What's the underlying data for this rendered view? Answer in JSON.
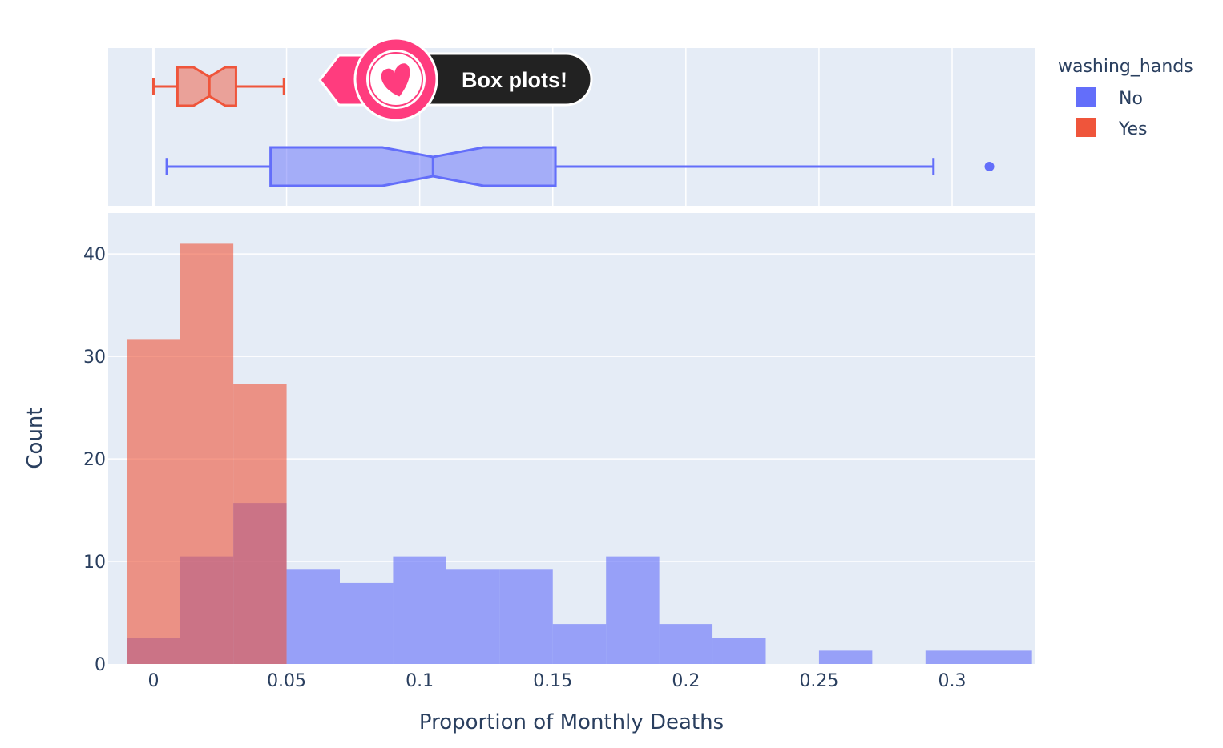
{
  "chart_data": {
    "type": "histogram_with_marginal_box",
    "xlabel": "Proportion of Monthly Deaths",
    "ylabel": "Count",
    "xlim": [
      -0.017,
      0.331
    ],
    "ylim": [
      0,
      44
    ],
    "x_ticks": [
      {
        "value": 0,
        "label": "0"
      },
      {
        "value": 0.05,
        "label": "0.05"
      },
      {
        "value": 0.1,
        "label": "0.1"
      },
      {
        "value": 0.15,
        "label": "0.15"
      },
      {
        "value": 0.2,
        "label": "0.2"
      },
      {
        "value": 0.25,
        "label": "0.25"
      },
      {
        "value": 0.3,
        "label": "0.3"
      }
    ],
    "y_ticks": [
      {
        "value": 0,
        "label": "0"
      },
      {
        "value": 10,
        "label": "10"
      },
      {
        "value": 20,
        "label": "20"
      },
      {
        "value": 30,
        "label": "30"
      },
      {
        "value": 40,
        "label": "40"
      }
    ],
    "grid": true,
    "legend": {
      "title": "washing_hands",
      "placement": "top-right",
      "items": [
        {
          "name": "No",
          "color": "#636efa"
        },
        {
          "name": "Yes",
          "color": "#ef553b"
        }
      ]
    },
    "series": [
      {
        "name": "No",
        "color": "#636efa",
        "bins": [
          {
            "x0": -0.01,
            "x1": 0.01,
            "count": 2.5
          },
          {
            "x0": 0.01,
            "x1": 0.03,
            "count": 10.5
          },
          {
            "x0": 0.03,
            "x1": 0.05,
            "count": 15.7
          },
          {
            "x0": 0.05,
            "x1": 0.07,
            "count": 9.2
          },
          {
            "x0": 0.07,
            "x1": 0.09,
            "count": 7.9
          },
          {
            "x0": 0.09,
            "x1": 0.11,
            "count": 10.5
          },
          {
            "x0": 0.11,
            "x1": 0.13,
            "count": 9.2
          },
          {
            "x0": 0.13,
            "x1": 0.15,
            "count": 9.2
          },
          {
            "x0": 0.15,
            "x1": 0.17,
            "count": 3.9
          },
          {
            "x0": 0.17,
            "x1": 0.19,
            "count": 10.5
          },
          {
            "x0": 0.19,
            "x1": 0.21,
            "count": 3.9
          },
          {
            "x0": 0.21,
            "x1": 0.23,
            "count": 2.5
          },
          {
            "x0": 0.25,
            "x1": 0.27,
            "count": 1.3
          },
          {
            "x0": 0.29,
            "x1": 0.31,
            "count": 1.3
          },
          {
            "x0": 0.31,
            "x1": 0.33,
            "count": 1.3
          }
        ],
        "box": {
          "lowerfence": 0.005,
          "q1": 0.044,
          "median": 0.105,
          "q3": 0.151,
          "upperfence": 0.293,
          "notch_low": 0.086,
          "notch_high": 0.124,
          "outliers": [
            0.314
          ]
        }
      },
      {
        "name": "Yes",
        "color": "#ef553b",
        "bins": [
          {
            "x0": -0.01,
            "x1": 0.01,
            "count": 31.7
          },
          {
            "x0": 0.01,
            "x1": 0.03,
            "count": 41
          },
          {
            "x0": 0.03,
            "x1": 0.05,
            "count": 27.3
          }
        ],
        "box": {
          "lowerfence": 0.0,
          "q1": 0.009,
          "median": 0.021,
          "q3": 0.031,
          "upperfence": 0.049,
          "notch_low": 0.015,
          "notch_high": 0.027,
          "outliers": []
        }
      }
    ]
  },
  "annotation": {
    "text": "Box plots!",
    "icon": "heart-icon",
    "accent_color": "#ff3c7e"
  }
}
